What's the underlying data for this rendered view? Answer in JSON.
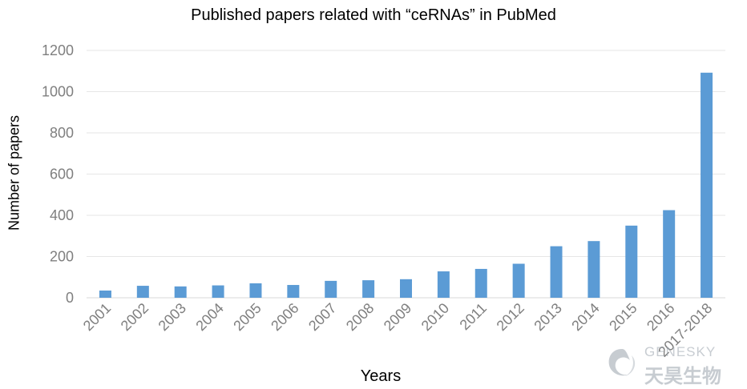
{
  "chart_data": {
    "type": "bar",
    "title": "Published papers related with “ceRNAs” in PubMed",
    "xlabel": "Years",
    "ylabel": "Number of papers",
    "categories": [
      "2001",
      "2002",
      "2003",
      "2004",
      "2005",
      "2006",
      "2007",
      "2008",
      "2009",
      "2010",
      "2011",
      "2012",
      "2013",
      "2014",
      "2015",
      "2016",
      "2017-2018"
    ],
    "values": [
      35,
      58,
      55,
      60,
      70,
      62,
      82,
      85,
      90,
      128,
      140,
      165,
      250,
      275,
      350,
      425,
      1092
    ],
    "ylim": [
      0,
      1200
    ],
    "yticks": [
      0,
      200,
      400,
      600,
      800,
      1000,
      1200
    ],
    "grid": true,
    "bar_color": "#5b9bd5"
  },
  "watermark": {
    "text_en": "GENESKY",
    "text_cn": "天昊生物",
    "icon": "swirl-logo-icon"
  }
}
